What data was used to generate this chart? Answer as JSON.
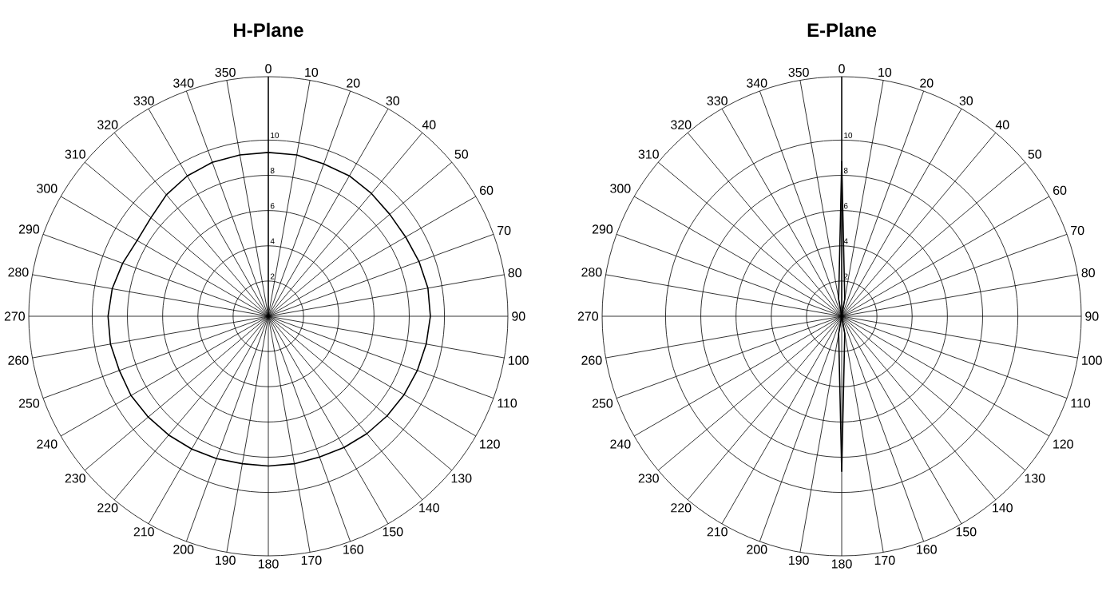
{
  "chart_data": [
    {
      "type": "radar",
      "title": "H-Plane",
      "categories": [
        "0",
        "10",
        "20",
        "30",
        "40",
        "50",
        "60",
        "70",
        "80",
        "90",
        "100",
        "110",
        "120",
        "130",
        "140",
        "150",
        "160",
        "170",
        "180",
        "190",
        "200",
        "210",
        "220",
        "230",
        "240",
        "250",
        "260",
        "270",
        "280",
        "290",
        "300",
        "310",
        "320",
        "330",
        "340",
        "350"
      ],
      "series": [
        {
          "color": "#000000",
          "values": [
            9.3,
            9.3,
            9.2,
            9.2,
            9.1,
            9.0,
            9.0,
            9.1,
            9.2,
            9.2,
            9.1,
            9.0,
            8.9,
            8.8,
            8.7,
            8.6,
            8.5,
            8.5,
            8.5,
            8.5,
            8.6,
            8.7,
            8.8,
            8.9,
            9.0,
            9.0,
            9.1,
            9.1,
            9.0,
            8.8,
            8.6,
            8.7,
            9.0,
            9.2,
            9.3,
            9.3
          ]
        }
      ],
      "ylim": [
        0,
        13.6
      ],
      "yticks": [
        2,
        4,
        6,
        8,
        10
      ],
      "grid": true,
      "marker": "none",
      "line_style": "solid"
    },
    {
      "type": "radar",
      "title": "E-Plane",
      "categories": [
        "0",
        "10",
        "20",
        "30",
        "40",
        "50",
        "60",
        "70",
        "80",
        "90",
        "100",
        "110",
        "120",
        "130",
        "140",
        "150",
        "160",
        "170",
        "180",
        "190",
        "200",
        "210",
        "220",
        "230",
        "240",
        "250",
        "260",
        "270",
        "280",
        "290",
        "300",
        "310",
        "320",
        "330",
        "340",
        "350"
      ],
      "series": [
        {
          "color": "#000000",
          "values": [
            8.8,
            1,
            0,
            0,
            0,
            0,
            0,
            0,
            0,
            0,
            0,
            0,
            0,
            0,
            0,
            0,
            0,
            1,
            8.8,
            1,
            0,
            0,
            0,
            0,
            0,
            0,
            0,
            0,
            0,
            0,
            0,
            0,
            0,
            0,
            0,
            1
          ]
        }
      ],
      "ylim": [
        0,
        13.6
      ],
      "yticks": [
        2,
        4,
        6,
        8,
        10
      ],
      "grid": true,
      "marker": "none",
      "line_style": "solid"
    }
  ]
}
